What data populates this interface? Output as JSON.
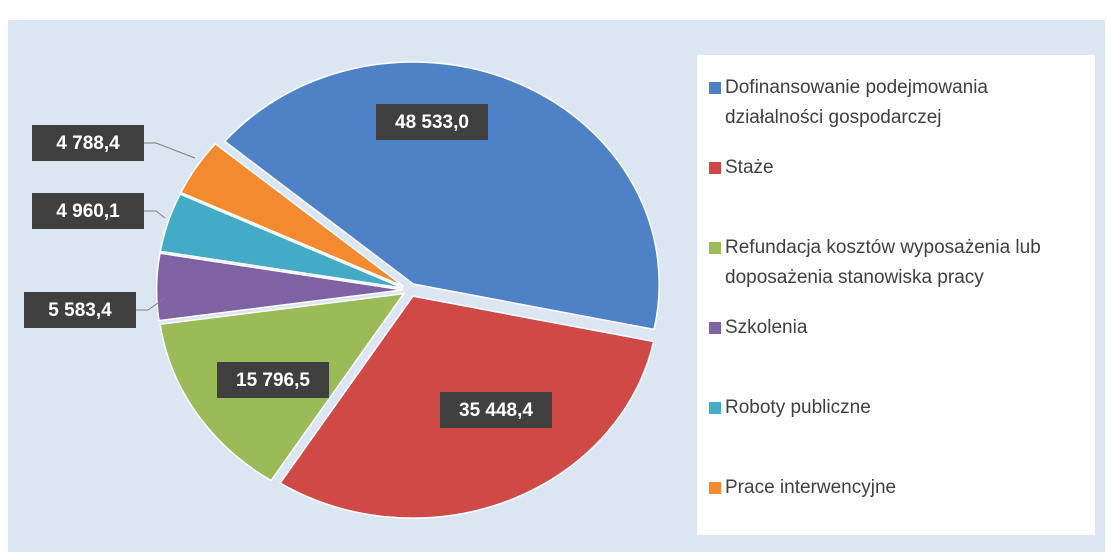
{
  "chart_data": {
    "type": "pie",
    "categories": [
      "Dofinansowanie podejmowania działalności gospodarczej",
      "Staże",
      "Refundacja kosztów wyposażenia lub doposażenia stanowiska pracy",
      "Szkolenia",
      "Roboty publiczne",
      "Prace interwencyjne"
    ],
    "values": [
      48533.0,
      35448.4,
      15796.5,
      5583.4,
      4960.1,
      4788.4
    ],
    "value_labels": [
      "48 533,0",
      "35 448,4",
      "15 796,5",
      "5 583,4",
      "4 960,1",
      "4 788,4"
    ],
    "colors": [
      "#4f81c7",
      "#cf4a47",
      "#9bbb59",
      "#7f62a3",
      "#43abc5",
      "#f38a2f"
    ],
    "legend": "right"
  }
}
